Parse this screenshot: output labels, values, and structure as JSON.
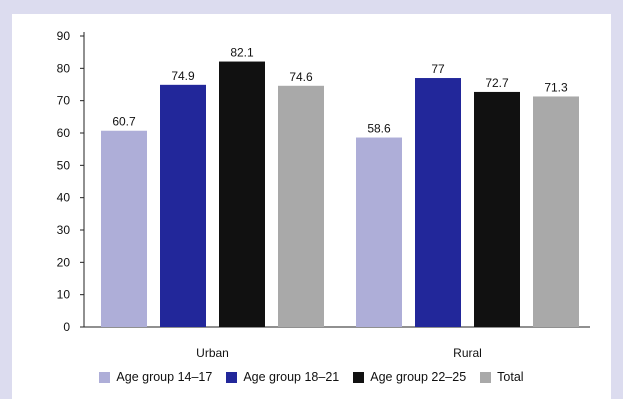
{
  "chart_data": {
    "type": "bar",
    "categories": [
      "Urban",
      "Rural"
    ],
    "series": [
      {
        "name": "Age group 14–17",
        "values": [
          60.7,
          58.6
        ],
        "color": "#aeaed8"
      },
      {
        "name": "Age group 18–21",
        "values": [
          74.9,
          77
        ],
        "color": "#22279a"
      },
      {
        "name": "Age group 22–25",
        "values": [
          82.1,
          72.7
        ],
        "color": "#111111"
      },
      {
        "name": "Total",
        "values": [
          74.6,
          71.3
        ],
        "color": "#a9a9a9"
      }
    ],
    "value_labels": [
      [
        "60.7",
        "58.6"
      ],
      [
        "74.9",
        "77"
      ],
      [
        "82.1",
        "72.7"
      ],
      [
        "74.6",
        "71.3"
      ]
    ],
    "yticks": [
      0,
      10,
      20,
      30,
      40,
      50,
      60,
      70,
      80,
      90
    ],
    "ylim": [
      0,
      90
    ],
    "grid": false,
    "legend_position": "bottom"
  }
}
